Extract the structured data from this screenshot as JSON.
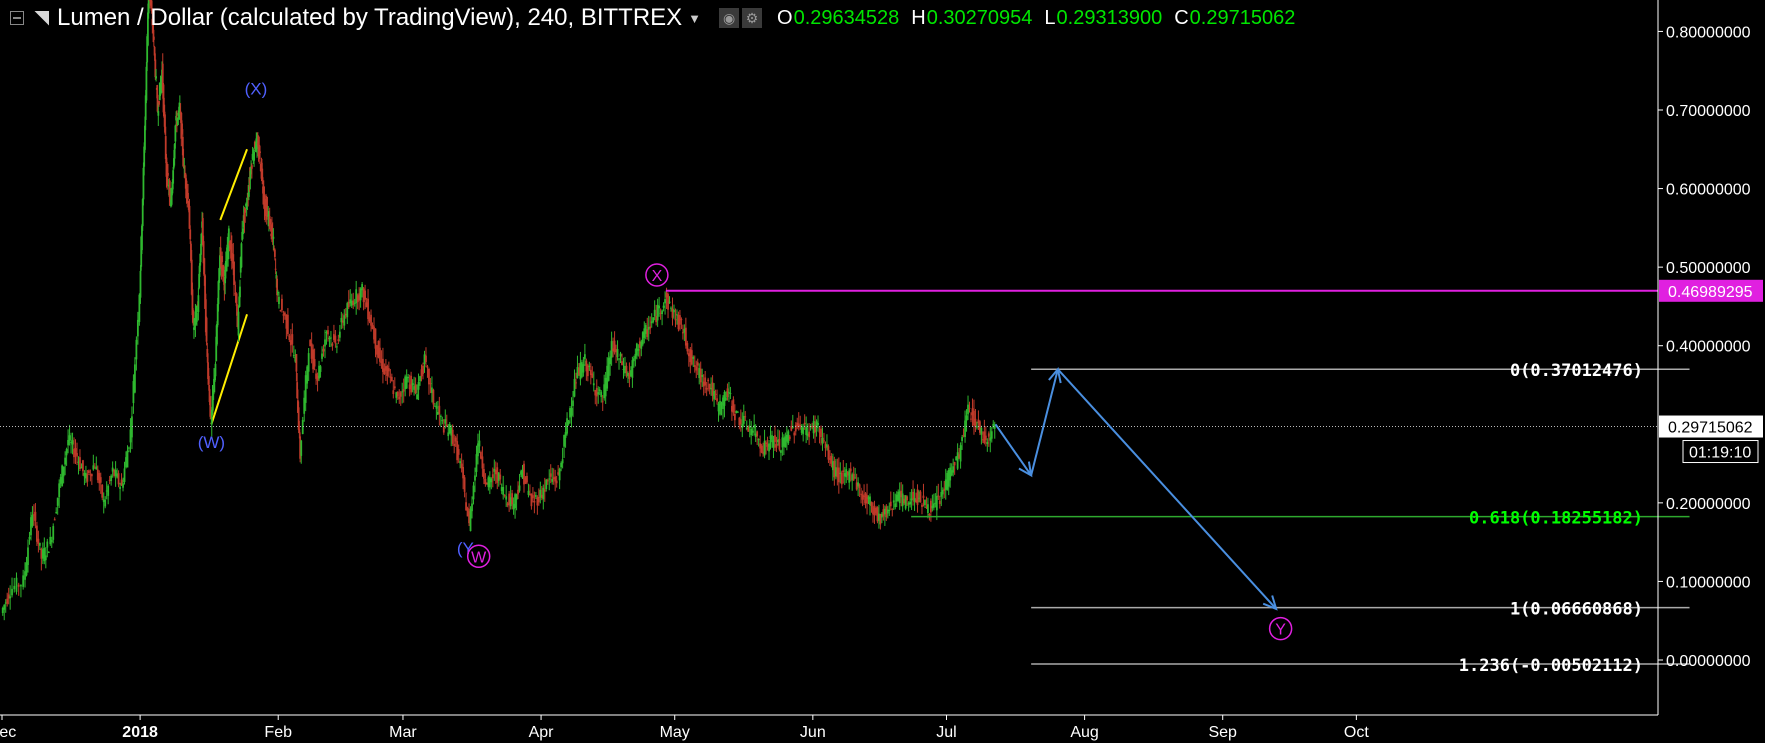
{
  "header": {
    "title": "Lumen / Dollar (calculated by TradingView), 240, BITTREX",
    "ohlc": [
      {
        "key": "O",
        "value": "0.29634528"
      },
      {
        "key": "H",
        "value": "0.30270954"
      },
      {
        "key": "L",
        "value": "0.29313900"
      },
      {
        "key": "C",
        "value": "0.29715062"
      }
    ]
  },
  "chart_data": {
    "type": "line",
    "y_axis": {
      "range": [
        -0.07,
        0.84
      ],
      "ticks": [
        0.8,
        0.7,
        0.6,
        0.5,
        0.4,
        0.2,
        0.1,
        0.0
      ],
      "tick_labels": [
        "0.80000000",
        "0.70000000",
        "0.60000000",
        "0.50000000",
        "0.40000000",
        "0.20000000",
        "0.10000000",
        "0.00000000"
      ],
      "side": "right"
    },
    "x_axis": {
      "tick_labels": [
        "Dec",
        "2018",
        "Feb",
        "Mar",
        "Apr",
        "May",
        "Jun",
        "Jul",
        "Aug",
        "Sep",
        "Oct"
      ],
      "tick_positions_day": [
        -31,
        0,
        31,
        59,
        90,
        120,
        151,
        181,
        212,
        243,
        273
      ],
      "bold": [
        "2018"
      ],
      "range_day": [
        -31,
        281
      ]
    },
    "current_price": {
      "value": 0.29715062,
      "label": "0.29715062",
      "countdown": "01:19:10"
    },
    "resistance_line": {
      "value": 0.46989295,
      "label": "0.46989295",
      "start_day": 118,
      "color": "#e020e0"
    },
    "fibonacci": {
      "start_day": 200,
      "end_day": 258,
      "levels": [
        {
          "value": 0.37012476,
          "label": "0(0.37012476)",
          "color": "#aaaaaa"
        },
        {
          "value": 0.18255182,
          "label": "0.618(0.18255182)",
          "color": "#2ea82e",
          "start_day": 200
        },
        {
          "value": 0.06660868,
          "label": "1(0.06660868)",
          "color": "#aaaaaa"
        },
        {
          "value": -0.00502112,
          "label": "1.236(-0.00502112)",
          "color": "#aaaaaa"
        }
      ]
    },
    "price_series": [
      [
        -31,
        0.06
      ],
      [
        -29,
        0.09
      ],
      [
        -26,
        0.1
      ],
      [
        -24,
        0.19
      ],
      [
        -22,
        0.13
      ],
      [
        -20,
        0.15
      ],
      [
        -18,
        0.22
      ],
      [
        -16,
        0.28
      ],
      [
        -14,
        0.26
      ],
      [
        -12,
        0.23
      ],
      [
        -10,
        0.25
      ],
      [
        -8,
        0.2
      ],
      [
        -6,
        0.24
      ],
      [
        -4,
        0.22
      ],
      [
        -2,
        0.29
      ],
      [
        0,
        0.47
      ],
      [
        1,
        0.65
      ],
      [
        2,
        0.86
      ],
      [
        3,
        0.8
      ],
      [
        4,
        0.7
      ],
      [
        5,
        0.75
      ],
      [
        6,
        0.62
      ],
      [
        7,
        0.58
      ],
      [
        8,
        0.68
      ],
      [
        9,
        0.7
      ],
      [
        10,
        0.62
      ],
      [
        11,
        0.58
      ],
      [
        12,
        0.42
      ],
      [
        13,
        0.45
      ],
      [
        14,
        0.56
      ],
      [
        15,
        0.4
      ],
      [
        16,
        0.3
      ],
      [
        17,
        0.38
      ],
      [
        18,
        0.52
      ],
      [
        19,
        0.48
      ],
      [
        20,
        0.54
      ],
      [
        21,
        0.5
      ],
      [
        22,
        0.42
      ],
      [
        23,
        0.55
      ],
      [
        24,
        0.58
      ],
      [
        25,
        0.63
      ],
      [
        26,
        0.66
      ],
      [
        27,
        0.64
      ],
      [
        28,
        0.58
      ],
      [
        29,
        0.56
      ],
      [
        30,
        0.53
      ],
      [
        31,
        0.46
      ],
      [
        33,
        0.43
      ],
      [
        35,
        0.38
      ],
      [
        36,
        0.26
      ],
      [
        38,
        0.4
      ],
      [
        40,
        0.36
      ],
      [
        42,
        0.42
      ],
      [
        44,
        0.4
      ],
      [
        46,
        0.44
      ],
      [
        48,
        0.46
      ],
      [
        50,
        0.47
      ],
      [
        52,
        0.43
      ],
      [
        54,
        0.38
      ],
      [
        56,
        0.36
      ],
      [
        58,
        0.33
      ],
      [
        60,
        0.36
      ],
      [
        62,
        0.34
      ],
      [
        64,
        0.38
      ],
      [
        66,
        0.33
      ],
      [
        68,
        0.3
      ],
      [
        70,
        0.29
      ],
      [
        72,
        0.25
      ],
      [
        74,
        0.17
      ],
      [
        76,
        0.28
      ],
      [
        78,
        0.22
      ],
      [
        80,
        0.24
      ],
      [
        82,
        0.21
      ],
      [
        84,
        0.2
      ],
      [
        86,
        0.24
      ],
      [
        88,
        0.2
      ],
      [
        90,
        0.21
      ],
      [
        92,
        0.23
      ],
      [
        94,
        0.23
      ],
      [
        96,
        0.3
      ],
      [
        98,
        0.36
      ],
      [
        100,
        0.38
      ],
      [
        102,
        0.35
      ],
      [
        104,
        0.33
      ],
      [
        106,
        0.4
      ],
      [
        108,
        0.38
      ],
      [
        110,
        0.36
      ],
      [
        112,
        0.4
      ],
      [
        114,
        0.42
      ],
      [
        116,
        0.44
      ],
      [
        118,
        0.46
      ],
      [
        120,
        0.44
      ],
      [
        122,
        0.42
      ],
      [
        124,
        0.38
      ],
      [
        126,
        0.36
      ],
      [
        128,
        0.35
      ],
      [
        130,
        0.32
      ],
      [
        132,
        0.34
      ],
      [
        134,
        0.31
      ],
      [
        136,
        0.3
      ],
      [
        138,
        0.29
      ],
      [
        140,
        0.27
      ],
      [
        142,
        0.28
      ],
      [
        144,
        0.27
      ],
      [
        146,
        0.29
      ],
      [
        148,
        0.3
      ],
      [
        150,
        0.29
      ],
      [
        152,
        0.3
      ],
      [
        154,
        0.27
      ],
      [
        156,
        0.24
      ],
      [
        158,
        0.23
      ],
      [
        160,
        0.24
      ],
      [
        162,
        0.21
      ],
      [
        164,
        0.2
      ],
      [
        166,
        0.18
      ],
      [
        168,
        0.19
      ],
      [
        170,
        0.21
      ],
      [
        172,
        0.2
      ],
      [
        174,
        0.21
      ],
      [
        176,
        0.2
      ],
      [
        178,
        0.19
      ],
      [
        180,
        0.21
      ],
      [
        182,
        0.24
      ],
      [
        184,
        0.26
      ],
      [
        186,
        0.32
      ],
      [
        188,
        0.3
      ],
      [
        190,
        0.28
      ],
      [
        192,
        0.3
      ]
    ],
    "annotations": [
      {
        "text": "(W)",
        "day": 16,
        "value": 0.27,
        "color": "#5060ff",
        "circled": false
      },
      {
        "text": "(X)",
        "day": 26,
        "value": 0.72,
        "color": "#5060ff",
        "circled": false
      },
      {
        "text": "(Y",
        "day": 73,
        "value": 0.135,
        "color": "#5060ff",
        "circled": false
      },
      {
        "text": "W",
        "day": 76,
        "value": 0.132,
        "color": "#e020e0",
        "circled": true
      },
      {
        "text": "X",
        "day": 116,
        "value": 0.49,
        "color": "#e020e0",
        "circled": true
      },
      {
        "text": "Y",
        "day": 256,
        "value": 0.04,
        "color": "#e020e0",
        "circled": true
      }
    ],
    "yellow_lines": [
      [
        [
          16,
          0.3
        ],
        [
          24,
          0.44
        ]
      ],
      [
        [
          18,
          0.56
        ],
        [
          24,
          0.65
        ]
      ]
    ],
    "projection_path": [
      [
        192,
        0.3
      ],
      [
        200,
        0.235
      ],
      [
        206,
        0.37
      ],
      [
        255,
        0.065
      ]
    ]
  },
  "colors": {
    "background": "#000000",
    "up_candle": "#2fb82f",
    "down_candle": "#c03a2a",
    "projection": "#4a8fe0",
    "fib_line": "#aaaaaa",
    "fib_green": "#2ea82e",
    "resistance": "#e020e0",
    "wave_blue": "#5060ff",
    "yellow": "#ffee00"
  },
  "icons": [
    "collapse-icon",
    "symbol-icon",
    "dropdown-caret-icon",
    "eye-icon",
    "settings-icon"
  ]
}
